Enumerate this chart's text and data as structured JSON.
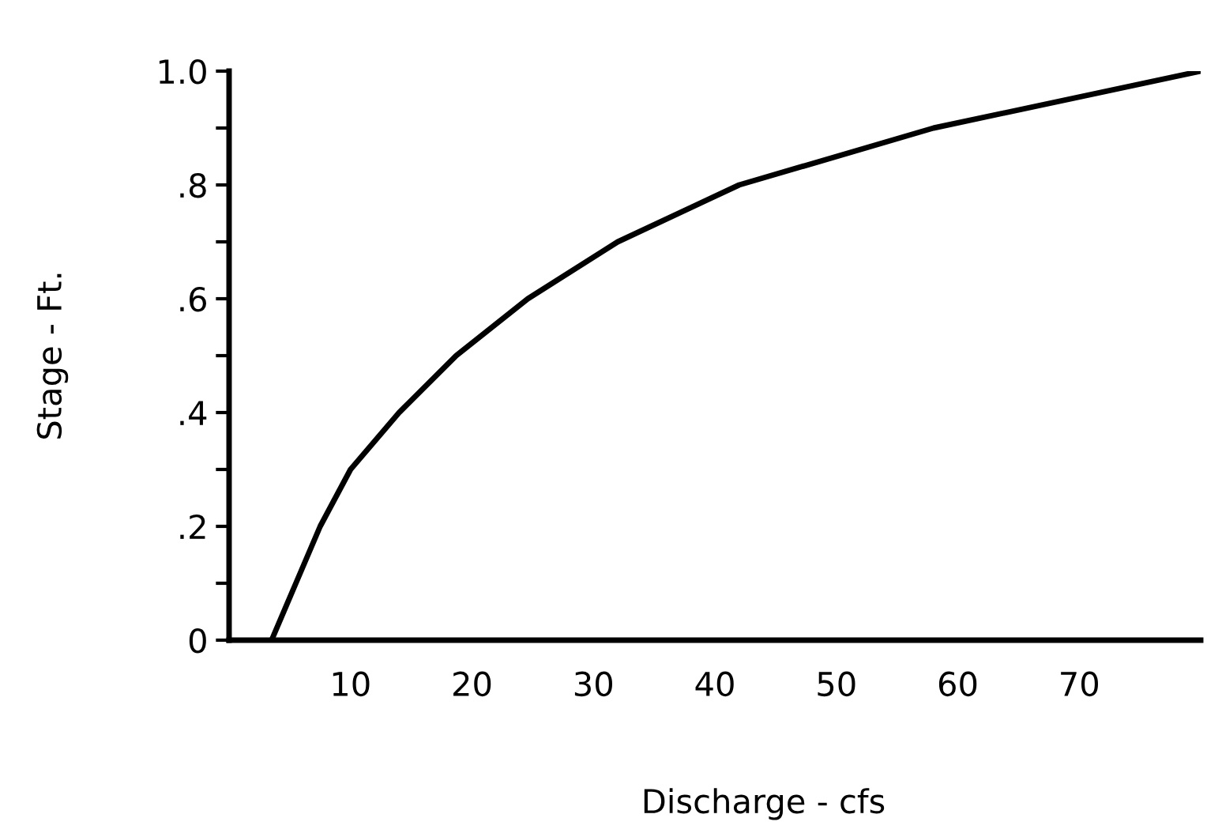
{
  "chart_data": {
    "type": "line",
    "xlabel": "Discharge - cfs",
    "ylabel": "Stage - Ft.",
    "x": [
      3.5,
      5.5,
      7.5,
      10,
      14,
      18.7,
      24.6,
      32,
      42,
      58,
      80
    ],
    "series": [
      {
        "color": "#000000",
        "values": [
          0,
          0.1,
          0.2,
          0.3,
          0.4,
          0.5,
          0.6,
          0.7,
          0.8,
          0.9,
          1.0
        ]
      }
    ],
    "xlim": [
      0,
      80
    ],
    "ylim": [
      0,
      1.0
    ],
    "xticks": [
      10,
      20,
      30,
      40,
      50,
      60,
      70
    ],
    "yticks": [
      0,
      {
        "value": 0.1,
        "label": null
      },
      {
        "value": 0.2,
        "label": ".2"
      },
      {
        "value": 0.3,
        "label": null
      },
      {
        "value": 0.4,
        "label": ".4"
      },
      {
        "value": 0.5,
        "label": null
      },
      {
        "value": 0.6,
        "label": ".6"
      },
      {
        "value": 0.7,
        "label": null
      },
      {
        "value": 0.8,
        "label": ".8"
      },
      {
        "value": 0.9,
        "label": null
      },
      {
        "value": 1.0,
        "label": "1.0"
      }
    ],
    "grid": false,
    "marker": "none",
    "line_style": "solid"
  }
}
